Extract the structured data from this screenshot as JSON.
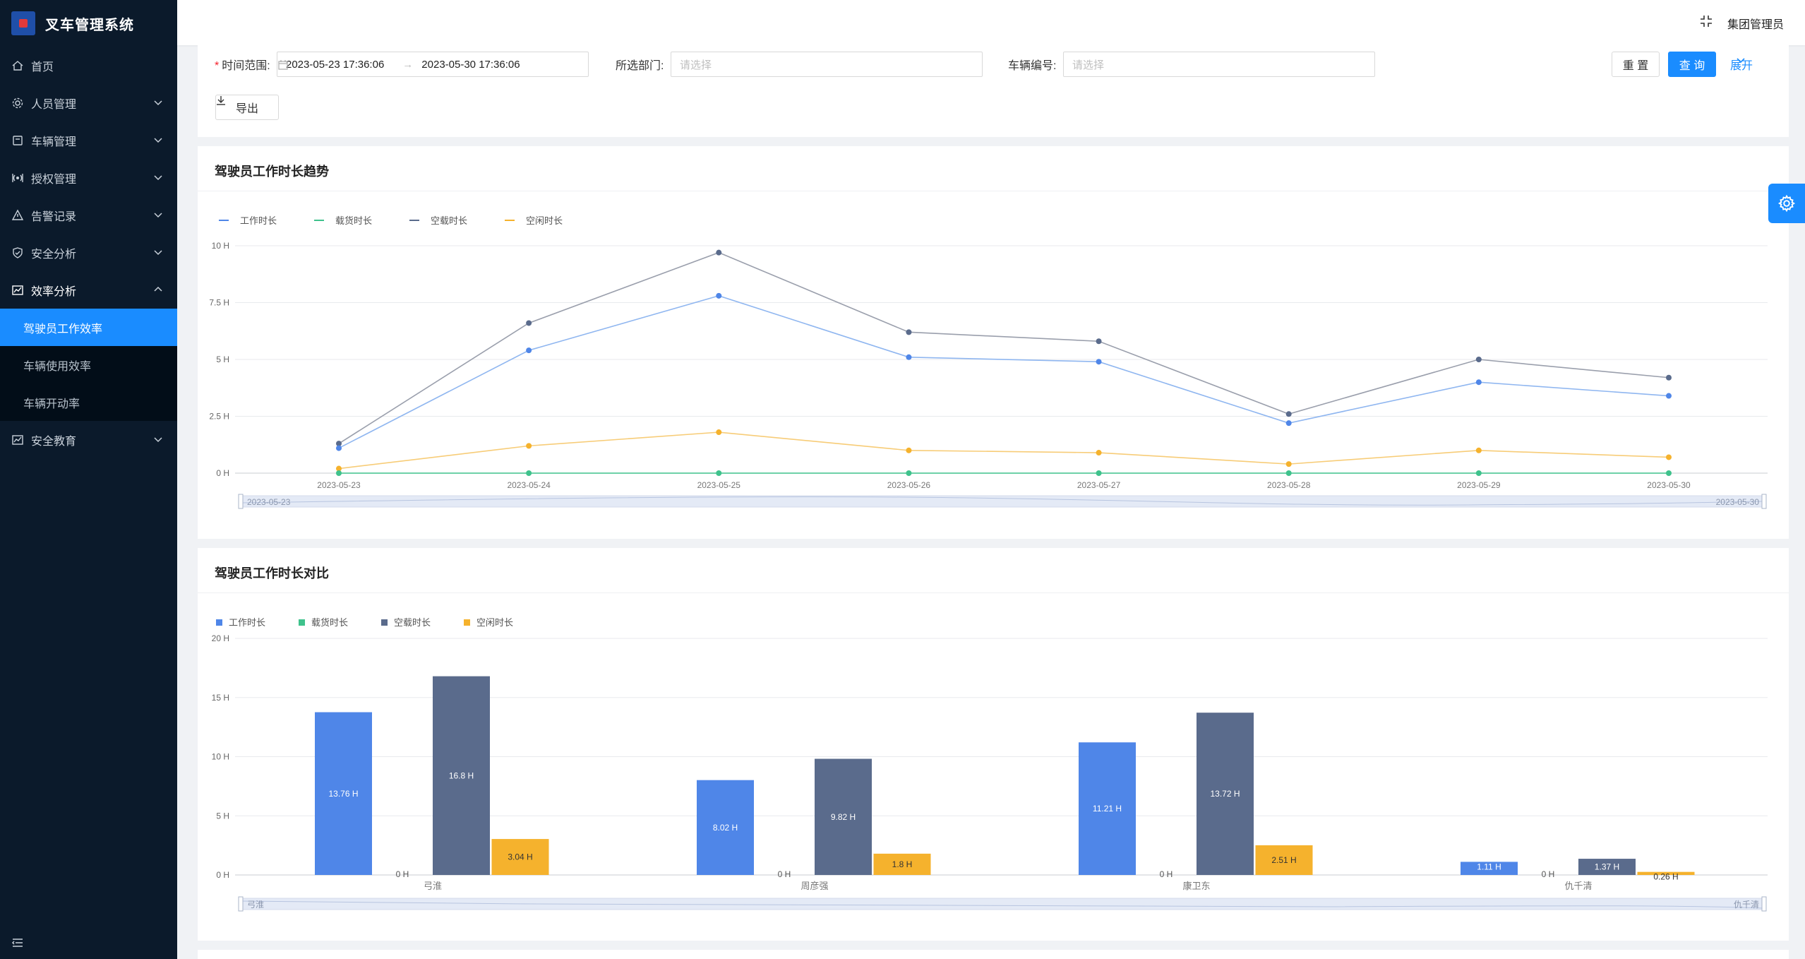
{
  "app": {
    "title": "叉车管理系统"
  },
  "header": {
    "user": "集团管理员"
  },
  "sidebar": {
    "items": [
      {
        "label": "首页",
        "icon": "home-icon",
        "has_arrow": false
      },
      {
        "label": "人员管理",
        "icon": "gear-icon",
        "has_arrow": true
      },
      {
        "label": "车辆管理",
        "icon": "vehicle-icon",
        "has_arrow": true
      },
      {
        "label": "授权管理",
        "icon": "auth-icon",
        "has_arrow": true
      },
      {
        "label": "告警记录",
        "icon": "warning-icon",
        "has_arrow": true
      },
      {
        "label": "安全分析",
        "icon": "shield-icon",
        "has_arrow": true
      },
      {
        "label": "效率分析",
        "icon": "chart-icon",
        "has_arrow": true,
        "open": true
      },
      {
        "label": "安全教育",
        "icon": "education-icon",
        "has_arrow": true
      }
    ],
    "sub_items": [
      {
        "label": "驾驶员工作效率",
        "active": true
      },
      {
        "label": "车辆使用效率",
        "active": false
      },
      {
        "label": "车辆开动率",
        "active": false
      }
    ]
  },
  "filter": {
    "time_label": "时间范围:",
    "start": "2023-05-23 17:36:06",
    "end": "2023-05-30 17:36:06",
    "dept_label": "所选部门:",
    "dept_placeholder": "请选择",
    "vehicle_label": "车辆编号:",
    "vehicle_placeholder": "请选择",
    "reset": "重 置",
    "query": "查 询",
    "expand": "展开",
    "export": "导出"
  },
  "colors": {
    "work": "#4f86e8",
    "load": "#3fc28c",
    "empty": "#5a6b8c",
    "idle": "#f5b22d",
    "accent": "#1a8cff"
  },
  "chart_data": [
    {
      "type": "line",
      "title": "驾驶员工作时长趋势",
      "x": [
        "2023-05-23",
        "2023-05-24",
        "2023-05-25",
        "2023-05-26",
        "2023-05-27",
        "2023-05-28",
        "2023-05-29",
        "2023-05-30"
      ],
      "series": [
        {
          "name": "工作时长",
          "values": [
            1.1,
            5.4,
            7.8,
            5.1,
            4.9,
            2.2,
            4.0,
            3.4
          ]
        },
        {
          "name": "载货时长",
          "values": [
            0,
            0,
            0,
            0,
            0,
            0,
            0,
            0
          ]
        },
        {
          "name": "空载时长",
          "values": [
            1.3,
            6.6,
            9.7,
            6.2,
            5.8,
            2.6,
            5.0,
            4.2
          ]
        },
        {
          "name": "空闲时长",
          "values": [
            0.2,
            1.2,
            1.8,
            1.0,
            0.9,
            0.4,
            1.0,
            0.7
          ]
        }
      ],
      "yticks": [
        "10 H",
        "7.5 H",
        "5 H",
        "2.5 H",
        "0 H"
      ],
      "ylim": [
        0,
        10
      ],
      "zoom_start": "2023-05-23",
      "zoom_end": "2023-05-30",
      "legend": "top-left",
      "grid": true
    },
    {
      "type": "bar",
      "title": "驾驶员工作时长对比",
      "categories": [
        "弓淮",
        "周彦强",
        "康卫东",
        "仇千清"
      ],
      "series": [
        {
          "name": "工作时长",
          "values": [
            13.76,
            8.02,
            11.21,
            1.11
          ],
          "labels": [
            "13.76 H",
            "8.02 H",
            "11.21 H",
            "1.11 H"
          ]
        },
        {
          "name": "载货时长",
          "values": [
            0,
            0,
            0,
            0
          ],
          "labels": [
            "0 H",
            "0 H",
            "0 H",
            "0 H"
          ]
        },
        {
          "name": "空载时长",
          "values": [
            16.8,
            9.82,
            13.72,
            1.37
          ],
          "labels": [
            "16.8 H",
            "9.82 H",
            "13.72 H",
            "1.37 H"
          ]
        },
        {
          "name": "空闲时长",
          "values": [
            3.04,
            1.8,
            2.51,
            0.26
          ],
          "labels": [
            "3.04 H",
            "1.8 H",
            "2.51 H",
            "0.26 H"
          ]
        }
      ],
      "yticks": [
        "20 H",
        "15 H",
        "10 H",
        "5 H",
        "0 H"
      ],
      "ylim": [
        0,
        20
      ],
      "zoom_start": "弓淮",
      "zoom_end": "仇千清",
      "legend": "top-left",
      "grid": true
    }
  ]
}
